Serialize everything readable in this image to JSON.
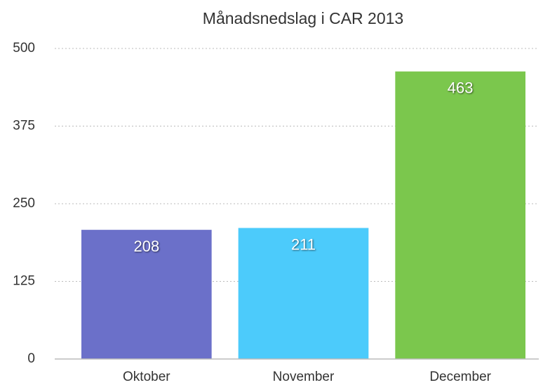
{
  "chart_data": {
    "type": "bar",
    "title": "Månadsnedslag i CAR 2013",
    "categories": [
      "Oktober",
      "November",
      "December"
    ],
    "values": [
      208,
      211,
      463
    ],
    "colors": [
      "#6b70c9",
      "#4ccbfb",
      "#7bc74d"
    ],
    "ylim": [
      0,
      500
    ],
    "yticks": [
      0,
      125,
      250,
      375,
      500
    ],
    "grid": true
  }
}
